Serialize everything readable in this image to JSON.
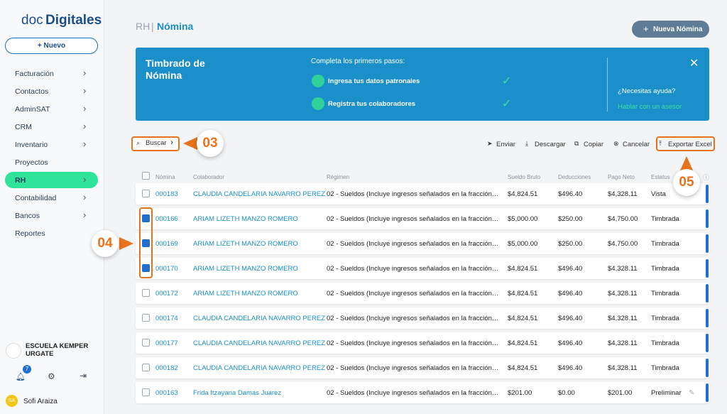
{
  "sidebar": {
    "logo": [
      "doc",
      "Digitales"
    ],
    "new_button": "Nuevo",
    "menu": [
      {
        "label": "Facturación",
        "arrow": true
      },
      {
        "label": "Contactos",
        "arrow": true
      },
      {
        "label": "AdminSAT",
        "arrow": true
      },
      {
        "label": "CRM",
        "arrow": true
      },
      {
        "label": "Inventario",
        "arrow": true
      },
      {
        "label": "Proyectos",
        "arrow": false
      },
      {
        "label": "RH",
        "arrow": true,
        "active": true
      },
      {
        "label": "Contabilidad",
        "arrow": true
      },
      {
        "label": "Bancos",
        "arrow": true
      },
      {
        "label": "Reportes",
        "arrow": false
      }
    ],
    "org": "ESCUELA KEMPER URGATE",
    "notifications": "7",
    "user_initials": "SA",
    "user": "Sofi Araiza"
  },
  "header": {
    "section": "RH",
    "separator": "|",
    "title": "Nómina",
    "new_button": "Nueva Nómina"
  },
  "banner": {
    "title": "Timbrado de Nómina",
    "prompt": "Completa los primeros pasos:",
    "steps": [
      "Ingresa tus datos patronales",
      "Registra tus colaboradores"
    ],
    "help": "¿Necesitas ayuda?",
    "link": "Hablar con un asesor"
  },
  "toolbar": {
    "search": "Buscar",
    "actions": [
      "Enviar",
      "Descargar",
      "Copiar",
      "Cancelar",
      "Exportar Excel"
    ]
  },
  "table": {
    "columns": [
      "Nómina",
      "Colaborador",
      "Régimen",
      "Sueldo Bruto",
      "Deducciones",
      "Pago Neto",
      "Estatus"
    ],
    "rows": [
      {
        "checked": false,
        "cells": [
          "000183",
          "CLAUDIA CANDELARIA NAVARRO PEREZ",
          "02 - Sueldos (Incluye ingresos señalados en la fracción…",
          "$4,824.51",
          "$496.40",
          "$4,328.11",
          "Vista"
        ]
      },
      {
        "checked": true,
        "cells": [
          "000166",
          "ARIAM LIZETH MANZO ROMERO",
          "02 - Sueldos (Incluye ingresos señalados en la fracción…",
          "$5,000.00",
          "$250.00",
          "$4,750.00",
          "Timbrada"
        ]
      },
      {
        "checked": true,
        "cells": [
          "000169",
          "ARIAM LIZETH MANZO ROMERO",
          "02 - Sueldos (Incluye ingresos señalados en la fracción…",
          "$5,000.00",
          "$250.00",
          "$4,750.00",
          "Timbrada"
        ]
      },
      {
        "checked": true,
        "cells": [
          "000170",
          "ARIAM LIZETH MANZO ROMERO",
          "02 - Sueldos (Incluye ingresos señalados en la fracción…",
          "$4,824.51",
          "$496.40",
          "$4,328.11",
          "Timbrada"
        ]
      },
      {
        "checked": false,
        "cells": [
          "000172",
          "ARIAM LIZETH MANZO ROMERO",
          "02 - Sueldos (Incluye ingresos señalados en la fracción…",
          "$4,824.51",
          "$496.40",
          "$4,328.11",
          "Timbrada"
        ]
      },
      {
        "checked": false,
        "cells": [
          "000174",
          "CLAUDIA CANDELARIA NAVARRO PEREZ",
          "02 - Sueldos (Incluye ingresos señalados en la fracción…",
          "$4,824.51",
          "$496.40",
          "$4,328.11",
          "Timbrada"
        ]
      },
      {
        "checked": false,
        "cells": [
          "000177",
          "CLAUDIA CANDELARIA NAVARRO PEREZ",
          "02 - Sueldos (Incluye ingresos señalados en la fracción…",
          "$4,824.51",
          "$496.40",
          "$4,328.11",
          "Timbrada"
        ]
      },
      {
        "checked": false,
        "cells": [
          "000182",
          "CLAUDIA CANDELARIA NAVARRO PEREZ",
          "02 - Sueldos (Incluye ingresos señalados en la fracción…",
          "$4,824.51",
          "$496.40",
          "$4,328.11",
          "Timbrada"
        ]
      },
      {
        "checked": false,
        "cells": [
          "000163",
          "Frida Itzayana Damas Juarez",
          "02 - Sueldos (Incluye ingresos señalados en la fracción…",
          "$201.00",
          "$0.00",
          "$201.00",
          "Preliminar"
        ]
      }
    ]
  },
  "annotations": [
    "03",
    "04",
    "05"
  ]
}
